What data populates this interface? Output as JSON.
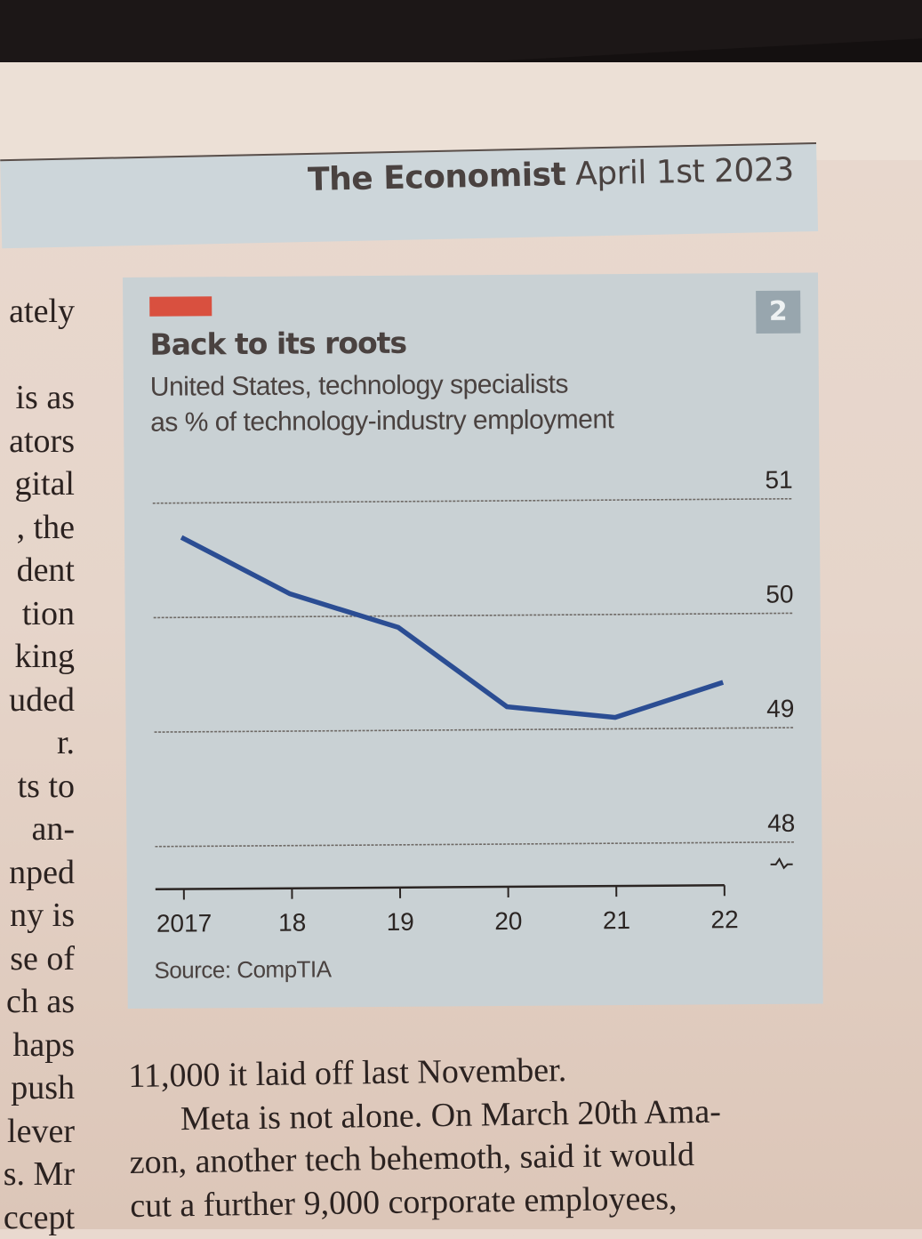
{
  "header": {
    "publication": "The Economist",
    "date": "April 1st 2023"
  },
  "left_column_fragments": [
    "ately",
    "",
    "is as",
    "ators",
    "gital",
    ", the",
    "dent",
    "tion",
    "king",
    "uded",
    "r.",
    "ts to",
    "an-",
    "nped",
    "ny is",
    "se of",
    "ch as",
    "haps",
    "push",
    "lever",
    "s. Mr",
    "ccept"
  ],
  "article_text": [
    "11,000 it laid off last November.",
    "Meta is not alone. On March 20th Ama-",
    "zon, another tech behemoth, said it would",
    "cut a further 9,000 corporate employees,"
  ],
  "chart_meta": {
    "chart_number": "2",
    "accent_color": "#d9503f",
    "line_color": "#2b4d93",
    "source": "Source: CompTIA",
    "axis_break_symbol": "axis-break"
  },
  "chart_data": {
    "type": "line",
    "title": "Back to its roots",
    "subtitle": [
      "United States, technology specialists",
      "as % of technology-industry employment"
    ],
    "xlabel": "",
    "ylabel": "",
    "x": [
      2017,
      2018,
      2019,
      2020,
      2021,
      2022
    ],
    "x_tick_labels": [
      "2017",
      "18",
      "19",
      "20",
      "21",
      "22"
    ],
    "series": [
      {
        "name": "Technology specialists, % of tech-industry employment",
        "values": [
          50.7,
          50.2,
          49.9,
          49.2,
          49.1,
          49.4
        ]
      }
    ],
    "y_ticks": [
      48,
      49,
      50,
      51
    ],
    "y_tick_labels": [
      "48",
      "49",
      "50",
      "51"
    ],
    "ylim": [
      48,
      51
    ],
    "y_axis_position": "right",
    "grid": true,
    "legend": "none"
  }
}
